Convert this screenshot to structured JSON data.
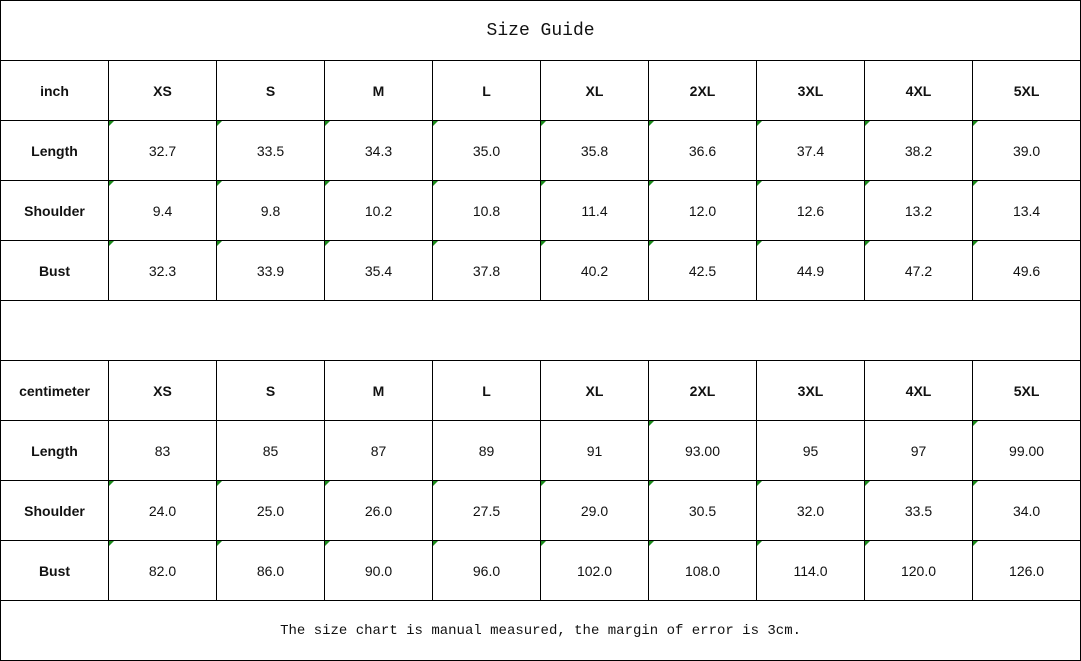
{
  "title": "Size Guide",
  "tables": [
    {
      "unit": "inch",
      "sizes": [
        "XS",
        "S",
        "M",
        "L",
        "XL",
        "2XL",
        "3XL",
        "4XL",
        "5XL"
      ],
      "rows": [
        {
          "label": "Length",
          "values": [
            "32.7",
            "33.5",
            "34.3",
            "35.0",
            "35.8",
            "36.6",
            "37.4",
            "38.2",
            "39.0"
          ]
        },
        {
          "label": "Shoulder",
          "values": [
            "9.4",
            "9.8",
            "10.2",
            "10.8",
            "11.4",
            "12.0",
            "12.6",
            "13.2",
            "13.4"
          ]
        },
        {
          "label": "Bust",
          "values": [
            "32.3",
            "33.9",
            "35.4",
            "37.8",
            "40.2",
            "42.5",
            "44.9",
            "47.2",
            "49.6"
          ]
        }
      ]
    },
    {
      "unit": "centimeter",
      "sizes": [
        "XS",
        "S",
        "M",
        "L",
        "XL",
        "2XL",
        "3XL",
        "4XL",
        "5XL"
      ],
      "rows": [
        {
          "label": "Length",
          "values": [
            "83",
            "85",
            "87",
            "89",
            "91",
            "93.00",
            "95",
            "97",
            "99.00"
          ]
        },
        {
          "label": "Shoulder",
          "values": [
            "24.0",
            "25.0",
            "26.0",
            "27.5",
            "29.0",
            "30.5",
            "32.0",
            "33.5",
            "34.0"
          ]
        },
        {
          "label": "Bust",
          "values": [
            "82.0",
            "86.0",
            "90.0",
            "96.0",
            "102.0",
            "108.0",
            "114.0",
            "120.0",
            "126.0"
          ]
        }
      ]
    }
  ],
  "note": "The size chart is manual measured, the margin of error is 3cm.",
  "colors": {
    "error_indicator": "#1a8a1a",
    "grid": "#000000"
  }
}
